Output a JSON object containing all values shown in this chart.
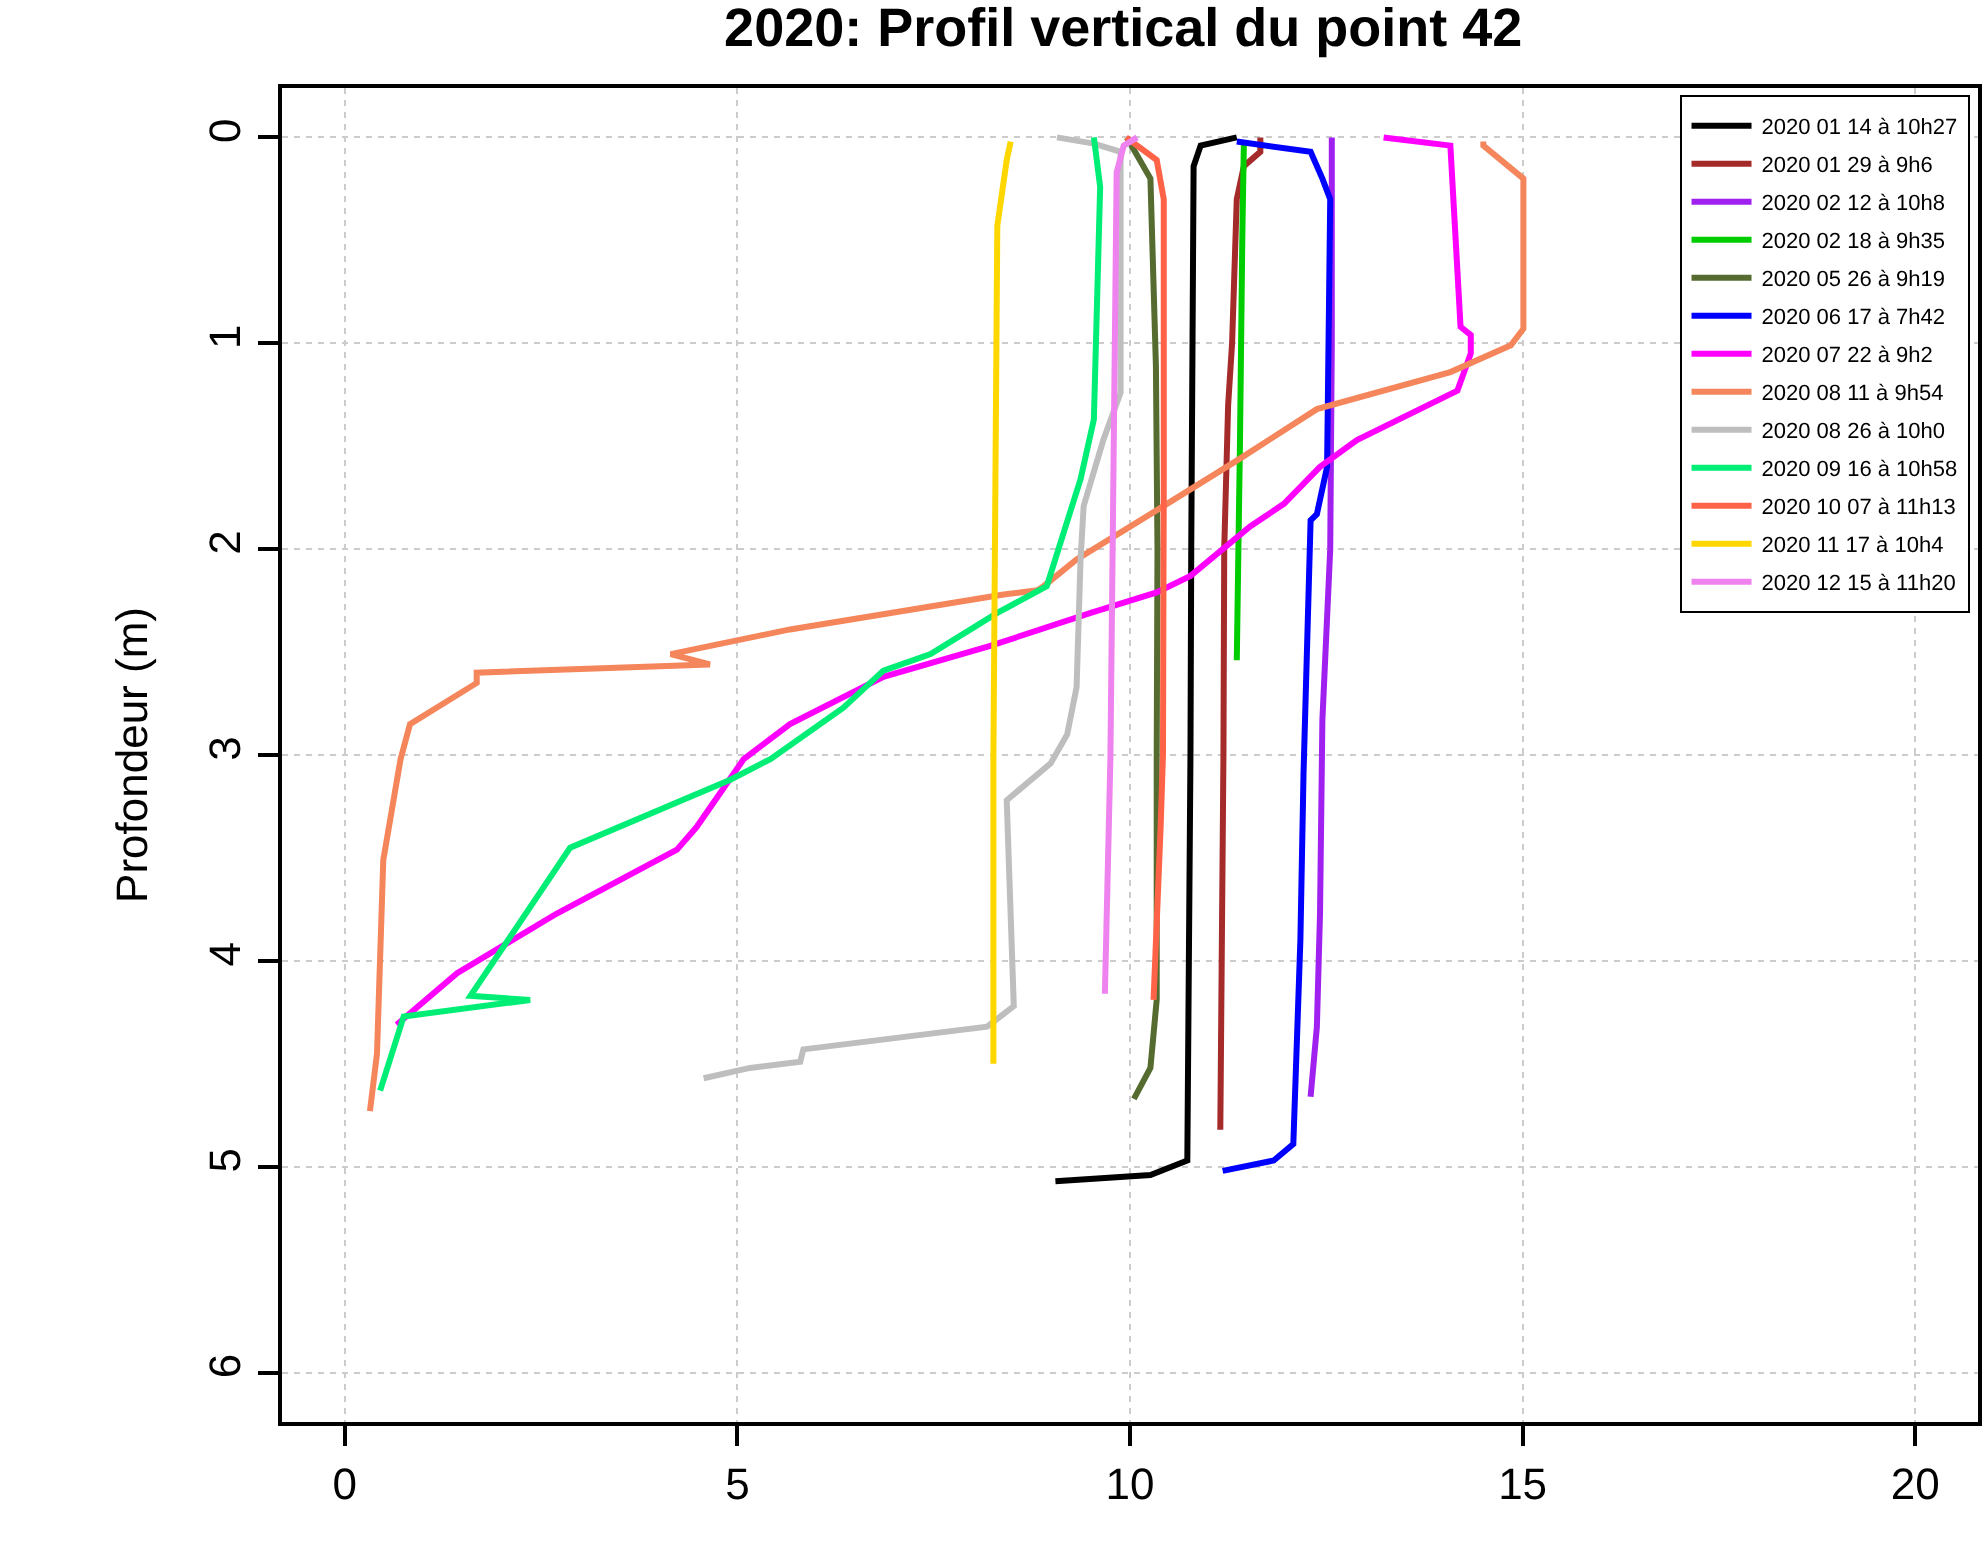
{
  "chart_data": {
    "type": "line",
    "title": "2020: Profil vertical du point 42",
    "ylabel": "Profondeur (m)",
    "xlim": [
      -0.8,
      20.8
    ],
    "xticks": [
      0,
      5,
      10,
      15,
      20
    ],
    "ylim": [
      6.24,
      -0.24
    ],
    "yticks": [
      0,
      1,
      2,
      3,
      4,
      5,
      6
    ],
    "grid": true,
    "legend": "top right",
    "line_style": "solid",
    "series": [
      {
        "name": "2020 01 14 à 10h27",
        "color": "#000000",
        "x": [
          11.36,
          10.9,
          10.81,
          10.78,
          10.77,
          10.73,
          10.26,
          9.05
        ],
        "values": [
          0,
          0.04,
          0.14,
          2.0,
          3.0,
          4.97,
          5.04,
          5.07
        ]
      },
      {
        "name": "2020 01 29 à 9h6",
        "color": "#a52a2a",
        "x": [
          11.66,
          11.66,
          11.45,
          11.36,
          11.3,
          11.25,
          11.2,
          11.19,
          11.15
        ],
        "values": [
          0,
          0.07,
          0.14,
          0.3,
          1.0,
          1.3,
          2.0,
          3.0,
          4.82
        ]
      },
      {
        "name": "2020 02 12 à 10h8",
        "color": "#a020f0",
        "x": [
          12.57,
          12.57,
          12.55,
          12.45,
          12.42,
          12.38,
          12.3
        ],
        "values": [
          0,
          1.0,
          2.0,
          2.83,
          3.77,
          4.32,
          4.66
        ]
      },
      {
        "name": "2020 02 18 à 9h35",
        "color": "#00cd00",
        "x": [
          11.45,
          11.43,
          11.4,
          11.36
        ],
        "values": [
          0.03,
          0.5,
          1.5,
          2.54
        ]
      },
      {
        "name": "2020 05 26 à 9h19",
        "color": "#556b2f",
        "x": [
          9.96,
          10.26,
          10.33,
          10.35,
          10.34,
          10.34,
          10.26,
          10.05
        ],
        "values": [
          0,
          0.2,
          1.11,
          2.0,
          3.0,
          4.19,
          4.52,
          4.67
        ]
      },
      {
        "name": "2020 06 17 à 7h42",
        "color": "#0000ff",
        "x": [
          11.36,
          12.3,
          12.45,
          12.55,
          12.51,
          12.38,
          12.3,
          12.21,
          12.17,
          12.08,
          11.83,
          11.18
        ],
        "values": [
          0.02,
          0.07,
          0.2,
          0.3,
          1.6,
          1.83,
          1.86,
          3.09,
          3.9,
          4.89,
          4.97,
          5.02
        ]
      },
      {
        "name": "2020 07 22 à 9h2",
        "color": "#ff00ff",
        "x": [
          13.23,
          14.08,
          14.21,
          14.34,
          14.34,
          14.17,
          12.89,
          12.42,
          11.96,
          11.53,
          10.77,
          10.34,
          9.5,
          8.22,
          6.86,
          5.67,
          5.08,
          4.48,
          4.23,
          2.7,
          1.43,
          0.66
        ],
        "values": [
          0,
          0.04,
          0.92,
          0.96,
          1.05,
          1.23,
          1.47,
          1.6,
          1.78,
          1.89,
          2.13,
          2.21,
          2.31,
          2.47,
          2.62,
          2.85,
          3.02,
          3.35,
          3.46,
          3.77,
          4.06,
          4.31
        ]
      },
      {
        "name": "2020 08 11 à 9h54",
        "color": "#f5855a",
        "x": [
          14.5,
          14.5,
          15.01,
          15.01,
          14.85,
          14.08,
          12.38,
          11.36,
          10.43,
          9.32,
          8.9,
          8.82,
          8.39,
          5.67,
          4.15,
          4.65,
          1.68,
          1.68,
          0.83,
          0.71,
          0.49,
          0.41,
          0.32
        ],
        "values": [
          0.02,
          0.04,
          0.2,
          0.93,
          1.01,
          1.14,
          1.32,
          1.57,
          1.79,
          2.05,
          2.18,
          2.2,
          2.22,
          2.39,
          2.51,
          2.56,
          2.6,
          2.65,
          2.85,
          3.02,
          3.51,
          4.45,
          4.73
        ]
      },
      {
        "name": "2020 08 26 à 10h0",
        "color": "#bebebe",
        "x": [
          9.07,
          9.54,
          9.88,
          9.88,
          9.66,
          9.41,
          9.37,
          9.32,
          9.2,
          8.99,
          8.43,
          8.52,
          8.18,
          5.84,
          5.8,
          5.16,
          4.57
        ],
        "values": [
          0,
          0.03,
          0.07,
          1.24,
          1.47,
          1.79,
          2.05,
          2.67,
          2.9,
          3.04,
          3.22,
          4.22,
          4.32,
          4.43,
          4.49,
          4.52,
          4.57
        ]
      },
      {
        "name": "2020 09 16 à 10h58",
        "color": "#00ee76",
        "x": [
          9.54,
          9.62,
          9.54,
          9.37,
          8.94,
          8.31,
          7.46,
          6.86,
          6.35,
          5.42,
          4.91,
          2.87,
          1.6,
          2.36,
          0.75,
          0.45
        ],
        "values": [
          0,
          0.24,
          1.37,
          1.66,
          2.18,
          2.31,
          2.51,
          2.59,
          2.77,
          3.02,
          3.12,
          3.45,
          4.17,
          4.19,
          4.27,
          4.63
        ]
      },
      {
        "name": "2020 10 07 à 11h13",
        "color": "#ff6347",
        "x": [
          9.95,
          10.34,
          10.43,
          10.43,
          10.42,
          10.39,
          10.3
        ],
        "values": [
          0,
          0.11,
          0.3,
          1.66,
          3.0,
          3.35,
          4.19
        ]
      },
      {
        "name": "2020 11 17 à 10h4",
        "color": "#ffd700",
        "x": [
          8.48,
          8.43,
          8.31,
          8.26,
          8.26
        ],
        "values": [
          0.02,
          0.11,
          0.43,
          3.02,
          4.5
        ]
      },
      {
        "name": "2020 12 15 à 11h20",
        "color": "#ee82ee",
        "x": [
          10.09,
          9.92,
          9.83,
          9.75,
          9.68
        ],
        "values": [
          0,
          0.04,
          0.17,
          3.02,
          4.16
        ]
      }
    ]
  }
}
